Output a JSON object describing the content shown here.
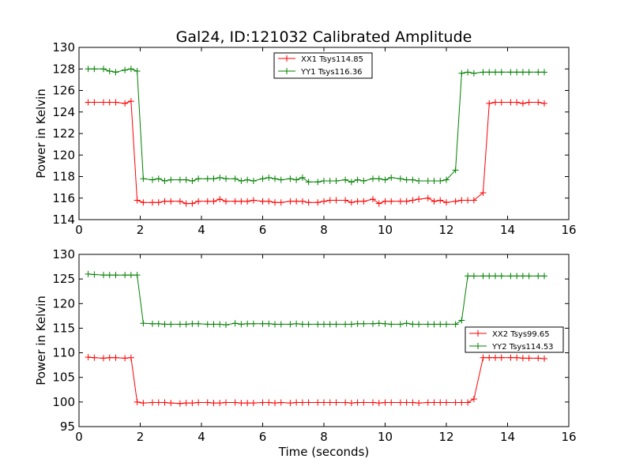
{
  "figure": {
    "background": "#ffffff"
  },
  "chart_data": [
    {
      "type": "line",
      "title": "Gal24, ID:121032 Calibrated Amplitude",
      "xlabel": "",
      "ylabel": "Power in Kelvin",
      "xlim": [
        0,
        16
      ],
      "ylim": [
        114,
        130
      ],
      "xticks": [
        0,
        2,
        4,
        6,
        8,
        10,
        12,
        14,
        16
      ],
      "yticks": [
        114,
        116,
        118,
        120,
        122,
        124,
        126,
        128,
        130
      ],
      "grid": false,
      "legend_position": "top-center",
      "x": [
        0.3,
        0.5,
        0.8,
        1.0,
        1.2,
        1.5,
        1.7,
        1.9,
        2.1,
        2.4,
        2.6,
        2.8,
        3.0,
        3.3,
        3.5,
        3.7,
        3.9,
        4.2,
        4.4,
        4.6,
        4.8,
        5.1,
        5.3,
        5.5,
        5.7,
        6.0,
        6.2,
        6.4,
        6.6,
        6.9,
        7.1,
        7.3,
        7.5,
        7.8,
        8.0,
        8.2,
        8.4,
        8.7,
        8.9,
        9.1,
        9.3,
        9.6,
        9.8,
        10.0,
        10.2,
        10.5,
        10.7,
        10.9,
        11.1,
        11.4,
        11.6,
        11.8,
        12.0,
        12.3,
        12.5,
        12.7,
        12.9,
        13.2,
        13.4,
        13.6,
        13.8,
        14.1,
        14.3,
        14.5,
        14.7,
        15.0,
        15.2
      ],
      "series": [
        {
          "name": "XX1 Tsys114.85",
          "color": "#ff0000",
          "values": [
            124.9,
            124.9,
            124.9,
            124.9,
            124.9,
            124.8,
            125.0,
            115.8,
            115.6,
            115.6,
            115.6,
            115.7,
            115.7,
            115.7,
            115.5,
            115.5,
            115.7,
            115.7,
            115.7,
            115.9,
            115.7,
            115.7,
            115.7,
            115.7,
            115.8,
            115.7,
            115.7,
            115.6,
            115.6,
            115.7,
            115.7,
            115.7,
            115.6,
            115.6,
            115.7,
            115.8,
            115.8,
            115.8,
            115.6,
            115.7,
            115.7,
            115.9,
            115.5,
            115.7,
            115.7,
            115.7,
            115.7,
            115.8,
            115.9,
            116.0,
            115.7,
            115.8,
            115.6,
            115.7,
            115.8,
            115.8,
            115.8,
            116.5,
            124.8,
            124.9,
            124.9,
            124.9,
            124.9,
            124.8,
            124.9,
            124.9,
            124.8
          ]
        },
        {
          "name": "YY1 Tsys116.36",
          "color": "#008000",
          "values": [
            128.0,
            128.0,
            128.0,
            127.8,
            127.7,
            127.9,
            128.0,
            127.8,
            117.8,
            117.7,
            117.8,
            117.6,
            117.7,
            117.7,
            117.7,
            117.6,
            117.8,
            117.8,
            117.8,
            117.9,
            117.8,
            117.8,
            117.6,
            117.7,
            117.6,
            117.8,
            117.9,
            117.8,
            117.7,
            117.8,
            117.7,
            117.9,
            117.5,
            117.5,
            117.6,
            117.6,
            117.6,
            117.7,
            117.5,
            117.7,
            117.6,
            117.8,
            117.8,
            117.7,
            117.9,
            117.8,
            117.7,
            117.7,
            117.6,
            117.6,
            117.6,
            117.6,
            117.7,
            118.6,
            127.6,
            127.7,
            127.6,
            127.7,
            127.7,
            127.7,
            127.7,
            127.7,
            127.7,
            127.7,
            127.7,
            127.7,
            127.7
          ]
        }
      ]
    },
    {
      "type": "line",
      "title": "",
      "xlabel": "Time (seconds)",
      "ylabel": "Power in Kelvin",
      "xlim": [
        0,
        16
      ],
      "ylim": [
        95,
        130
      ],
      "xticks": [
        0,
        2,
        4,
        6,
        8,
        10,
        12,
        14,
        16
      ],
      "yticks": [
        95,
        100,
        105,
        110,
        115,
        120,
        125,
        130
      ],
      "grid": false,
      "legend_position": "center-right",
      "x": [
        0.3,
        0.5,
        0.8,
        1.0,
        1.2,
        1.5,
        1.7,
        1.9,
        2.1,
        2.4,
        2.6,
        2.8,
        3.0,
        3.3,
        3.5,
        3.7,
        3.9,
        4.2,
        4.4,
        4.6,
        4.8,
        5.1,
        5.3,
        5.5,
        5.7,
        6.0,
        6.2,
        6.4,
        6.6,
        6.9,
        7.1,
        7.3,
        7.5,
        7.8,
        8.0,
        8.2,
        8.4,
        8.7,
        8.9,
        9.1,
        9.3,
        9.6,
        9.8,
        10.0,
        10.2,
        10.5,
        10.7,
        10.9,
        11.1,
        11.4,
        11.6,
        11.8,
        12.0,
        12.3,
        12.5,
        12.7,
        12.9,
        13.2,
        13.4,
        13.6,
        13.8,
        14.1,
        14.3,
        14.5,
        14.7,
        15.0,
        15.2
      ],
      "series": [
        {
          "name": "XX2 Tsys99.65",
          "color": "#ff0000",
          "values": [
            109.1,
            109.0,
            108.9,
            109.0,
            109.0,
            108.9,
            109.0,
            100.0,
            99.8,
            99.9,
            99.9,
            99.9,
            99.8,
            99.7,
            99.8,
            99.8,
            99.9,
            99.9,
            99.8,
            99.8,
            99.9,
            99.9,
            99.8,
            99.8,
            99.8,
            99.9,
            99.9,
            99.8,
            99.9,
            99.8,
            99.9,
            99.9,
            99.9,
            99.9,
            99.9,
            99.9,
            99.9,
            99.9,
            99.8,
            99.9,
            99.9,
            99.9,
            99.8,
            99.9,
            99.9,
            99.9,
            99.9,
            99.9,
            99.8,
            99.9,
            99.9,
            99.9,
            99.9,
            99.9,
            99.9,
            99.9,
            100.6,
            109.0,
            109.0,
            109.0,
            109.0,
            109.0,
            109.0,
            108.9,
            108.9,
            108.9,
            108.8
          ]
        },
        {
          "name": "YY2 Tsys114.53",
          "color": "#008000",
          "values": [
            126.0,
            125.9,
            125.8,
            125.8,
            125.8,
            125.8,
            125.8,
            125.8,
            116.0,
            115.9,
            115.9,
            115.8,
            115.8,
            115.8,
            115.8,
            115.9,
            115.9,
            115.8,
            115.8,
            115.8,
            115.7,
            116.0,
            115.8,
            115.9,
            115.9,
            115.9,
            115.9,
            115.8,
            115.8,
            115.8,
            115.9,
            115.8,
            115.8,
            115.8,
            115.8,
            115.8,
            115.8,
            115.8,
            115.8,
            115.9,
            115.9,
            115.9,
            116.0,
            115.9,
            115.8,
            115.8,
            116.0,
            115.8,
            115.8,
            115.8,
            115.8,
            115.8,
            115.8,
            115.8,
            116.6,
            125.6,
            125.6,
            125.6,
            125.6,
            125.6,
            125.6,
            125.6,
            125.6,
            125.6,
            125.6,
            125.6,
            125.6
          ]
        }
      ]
    }
  ]
}
